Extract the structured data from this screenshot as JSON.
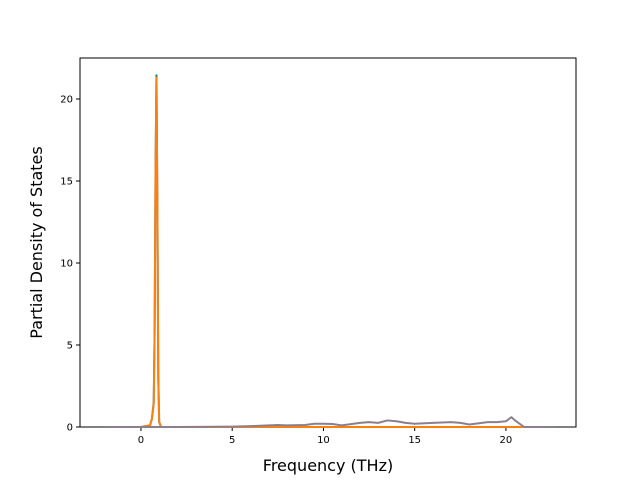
{
  "chart_data": {
    "type": "line",
    "xlabel": "Frequency (THz)",
    "ylabel": "Partial Density of States",
    "x": [
      -2.1,
      0,
      0.5,
      0.6,
      0.7,
      0.75,
      0.8,
      0.85,
      0.9,
      0.95,
      1.0,
      1.1,
      2,
      5,
      6,
      7,
      7.5,
      8,
      9,
      9.5,
      10,
      10.5,
      11,
      12,
      12.5,
      13,
      13.5,
      14,
      14.5,
      15,
      16,
      17,
      17.5,
      18,
      19,
      19.5,
      20,
      20.3,
      20.5,
      21,
      22.6
    ],
    "series": [
      {
        "color": "#1f77b4",
        "values": [
          0,
          0,
          0.1,
          0.5,
          1.5,
          6,
          16,
          21.45,
          14,
          3,
          0.3,
          0,
          0,
          0,
          0,
          0,
          0,
          0,
          0,
          0,
          0,
          0,
          0,
          0,
          0,
          0,
          0,
          0,
          0,
          0,
          0,
          0,
          0,
          0,
          0,
          0,
          0,
          0,
          0,
          0,
          0
        ]
      },
      {
        "color": "#ff7f0e",
        "values": [
          0,
          0,
          0.1,
          0.5,
          1.4,
          5.8,
          15.8,
          21.3,
          13.8,
          2.9,
          0.3,
          0,
          0,
          0,
          0,
          0,
          0,
          0,
          0,
          0,
          0,
          0,
          0,
          0,
          0,
          0,
          0,
          0,
          0,
          0,
          0,
          0,
          0,
          0,
          0,
          0,
          0,
          0,
          0,
          0,
          0
        ]
      },
      {
        "color": "#8c7f8c",
        "values": [
          0,
          0,
          0,
          0,
          0,
          0,
          0,
          0,
          0,
          0,
          0,
          0,
          0,
          0.02,
          0.05,
          0.1,
          0.12,
          0.1,
          0.12,
          0.2,
          0.2,
          0.18,
          0.1,
          0.25,
          0.3,
          0.25,
          0.4,
          0.35,
          0.25,
          0.2,
          0.25,
          0.3,
          0.25,
          0.15,
          0.3,
          0.3,
          0.35,
          0.6,
          0.4,
          0,
          0
        ]
      }
    ],
    "xlim": [
      -3.34,
      23.84
    ],
    "ylim": [
      0,
      22.5
    ],
    "xticks": [
      0,
      5,
      10,
      15,
      20
    ],
    "yticks": [
      0,
      5,
      10,
      15,
      20
    ]
  }
}
